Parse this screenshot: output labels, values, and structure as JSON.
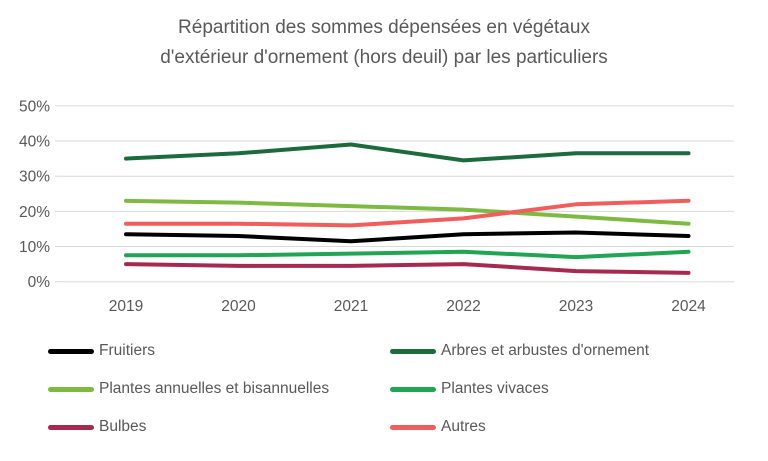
{
  "page": {
    "background": "#ffffff"
  },
  "chart_data": {
    "type": "line",
    "title": "Répartition des sommes dépensées en végétaux d'extérieur d'ornement (hors deuil) par les particuliers",
    "title_lines": [
      "Répartition des sommes dépensées en végétaux",
      "d'extérieur d'ornement (hors deuil) par les particuliers"
    ],
    "categories": [
      "2019",
      "2020",
      "2021",
      "2022",
      "2023",
      "2024"
    ],
    "series": [
      {
        "name": "Fruitiers",
        "color": "#000000",
        "values": [
          13.5,
          13,
          11.5,
          13.5,
          14,
          13
        ]
      },
      {
        "name": "Arbres et arbustes d'ornement",
        "color": "#1C6B3C",
        "values": [
          35,
          36.5,
          39,
          34.5,
          36.5,
          36.5
        ]
      },
      {
        "name": "Plantes annuelles et bisannuelles",
        "color": "#7EBA42",
        "values": [
          23,
          22.5,
          21.5,
          20.5,
          18.5,
          16.5
        ]
      },
      {
        "name": "Plantes vivaces",
        "color": "#22A455",
        "values": [
          7.5,
          7.5,
          8,
          8.5,
          7,
          8.5
        ]
      },
      {
        "name": "Bulbes",
        "color": "#A62A4F",
        "values": [
          5,
          4.5,
          4.5,
          5,
          3,
          2.5
        ]
      },
      {
        "name": "Autres",
        "color": "#EF5E5C",
        "values": [
          16.5,
          16.5,
          16,
          18,
          22,
          23
        ]
      }
    ],
    "ylim": [
      0,
      50
    ],
    "yticks": [
      0,
      10,
      20,
      30,
      40,
      50
    ],
    "ytick_format": "percent",
    "xlabel": "",
    "ylabel": "",
    "grid": true,
    "legend_position": "bottom"
  },
  "style": {
    "title_color": "#595959",
    "axis_text_color": "#595959",
    "gridline_color": "#D9D9D9"
  }
}
